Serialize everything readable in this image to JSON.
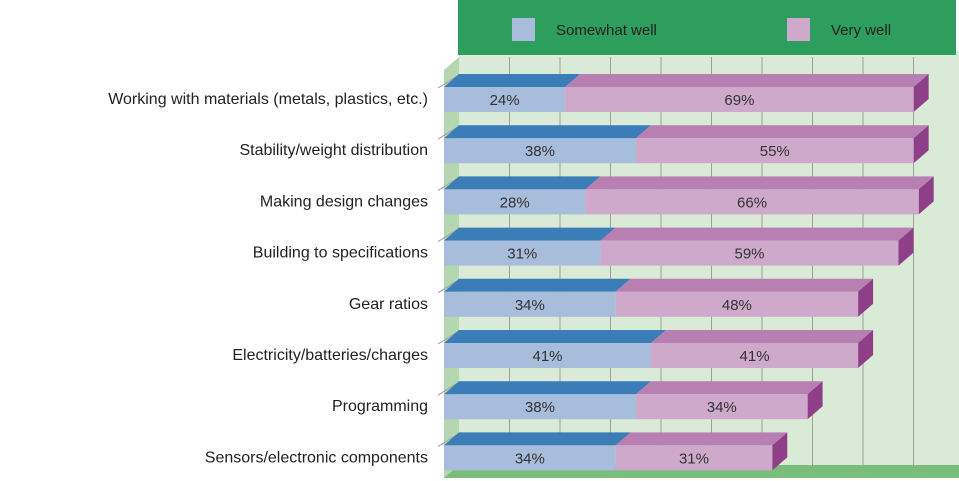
{
  "chart_data": {
    "type": "bar",
    "orientation": "horizontal",
    "stacked": true,
    "categories": [
      "Working with materials (metals, plastics, etc.)",
      "Stability/weight distribution",
      "Making design changes",
      "Building to specifications",
      "Gear ratios",
      "Electricity/batteries/charges",
      "Programming",
      "Sensors/electronic components"
    ],
    "series": [
      {
        "name": "Somewhat well",
        "values": [
          24,
          38,
          28,
          31,
          34,
          41,
          38,
          34
        ],
        "labels": [
          "24%",
          "38%",
          "28%",
          "31%",
          "34%",
          "41%",
          "38%",
          "34%"
        ]
      },
      {
        "name": "Very well",
        "values": [
          69,
          55,
          66,
          59,
          48,
          41,
          34,
          31
        ],
        "labels": [
          "69%",
          "55%",
          "66%",
          "59%",
          "48%",
          "41%",
          "34%",
          "31%"
        ]
      }
    ],
    "xlim": [
      0,
      100
    ],
    "grid": true,
    "legend_position": "top",
    "colors": {
      "somewhat_front": "#a8bcdc",
      "somewhat_top": "#3a7db7",
      "very_front": "#cfa9cc",
      "very_top": "#b87fb3",
      "very_side": "#8e3f88",
      "plot_bg": "#d9ead6",
      "wall_side": "#b4d6b0",
      "floor": "#79bd7a",
      "gridline": "#9e9e9e",
      "legend_bg": "#2e9e5f"
    }
  }
}
